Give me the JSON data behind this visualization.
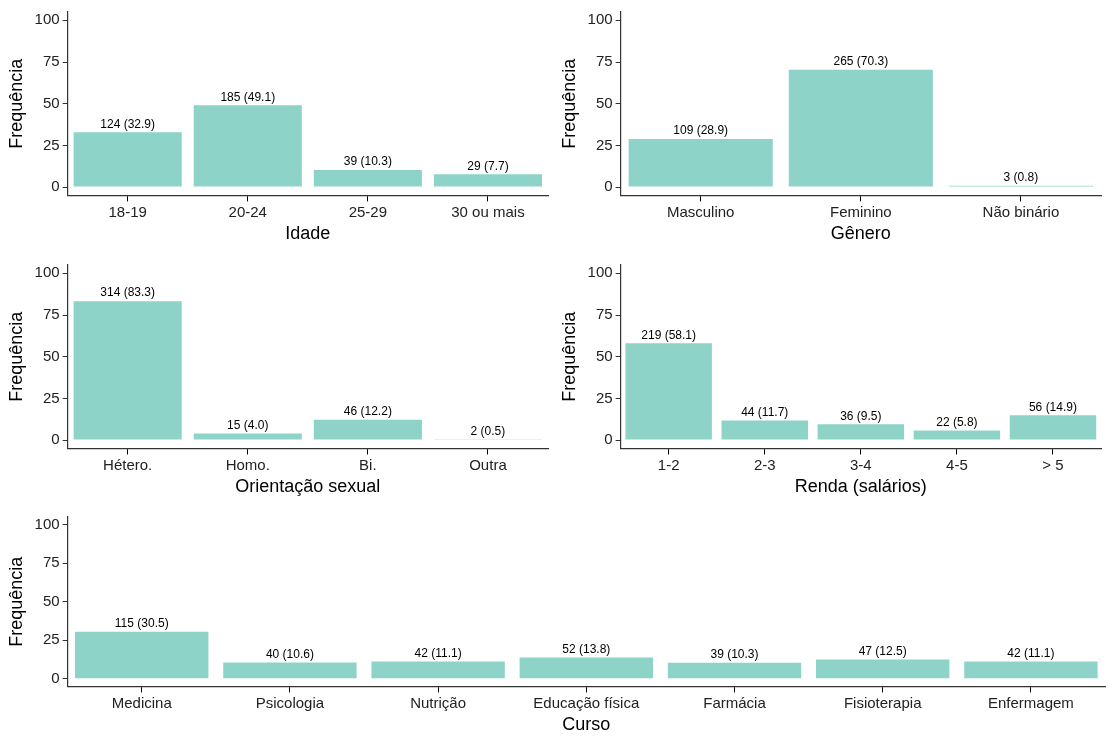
{
  "chart_data": [
    {
      "type": "bar",
      "xlabel": "Idade",
      "ylabel": "Frequência",
      "categories": [
        "18-19",
        "20-24",
        "25-29",
        "30 ou mais"
      ],
      "values": [
        32.9,
        49.1,
        10.3,
        7.7
      ],
      "value_labels": [
        "124 (32.9)",
        "185 (49.1)",
        "39 (10.3)",
        "29 (7.7)"
      ],
      "color": "#8dd3c7",
      "ylim": [
        -5,
        105
      ],
      "yticks": [
        0,
        25,
        50,
        75,
        100
      ],
      "grid": false,
      "legend": false
    },
    {
      "type": "bar",
      "xlabel": "Gênero",
      "ylabel": "Frequência",
      "categories": [
        "Masculino",
        "Feminino",
        "Não binário"
      ],
      "values": [
        28.9,
        70.3,
        0.8
      ],
      "value_labels": [
        "109 (28.9)",
        "265 (70.3)",
        "3 (0.8)"
      ],
      "color": "#8dd3c7",
      "ylim": [
        -5,
        105
      ],
      "yticks": [
        0,
        25,
        50,
        75,
        100
      ],
      "grid": false,
      "legend": false
    },
    {
      "type": "bar",
      "xlabel": "Orientação sexual",
      "ylabel": "Frequência",
      "categories": [
        "Hétero.",
        "Homo.",
        "Bi.",
        "Outra"
      ],
      "values": [
        83.3,
        4.0,
        12.2,
        0.5
      ],
      "value_labels": [
        "314 (83.3)",
        "15 (4.0)",
        "46 (12.2)",
        "2 (0.5)"
      ],
      "color": "#8dd3c7",
      "ylim": [
        -5,
        105
      ],
      "yticks": [
        0,
        25,
        50,
        75,
        100
      ],
      "grid": false,
      "legend": false
    },
    {
      "type": "bar",
      "xlabel": "Renda (salários)",
      "ylabel": "Frequência",
      "categories": [
        "1-2",
        "2-3",
        "3-4",
        "4-5",
        "> 5"
      ],
      "values": [
        58.1,
        11.7,
        9.5,
        5.8,
        14.9
      ],
      "value_labels": [
        "219 (58.1)",
        "44 (11.7)",
        "36 (9.5)",
        "22 (5.8)",
        "56 (14.9)"
      ],
      "color": "#8dd3c7",
      "ylim": [
        -5,
        105
      ],
      "yticks": [
        0,
        25,
        50,
        75,
        100
      ],
      "grid": false,
      "legend": false
    },
    {
      "type": "bar",
      "xlabel": "Curso",
      "ylabel": "Frequência",
      "categories": [
        "Medicina",
        "Psicologia",
        "Nutrição",
        "Educação física",
        "Farmácia",
        "Fisioterapia",
        "Enfermagem"
      ],
      "values": [
        30.5,
        10.6,
        11.1,
        13.8,
        10.3,
        12.5,
        11.1
      ],
      "value_labels": [
        "115 (30.5)",
        "40 (10.6)",
        "42 (11.1)",
        "52 (13.8)",
        "39 (10.3)",
        "47 (12.5)",
        "42 (11.1)"
      ],
      "color": "#8dd3c7",
      "ylim": [
        -5,
        105
      ],
      "yticks": [
        0,
        25,
        50,
        75,
        100
      ],
      "grid": false,
      "legend": false
    }
  ]
}
